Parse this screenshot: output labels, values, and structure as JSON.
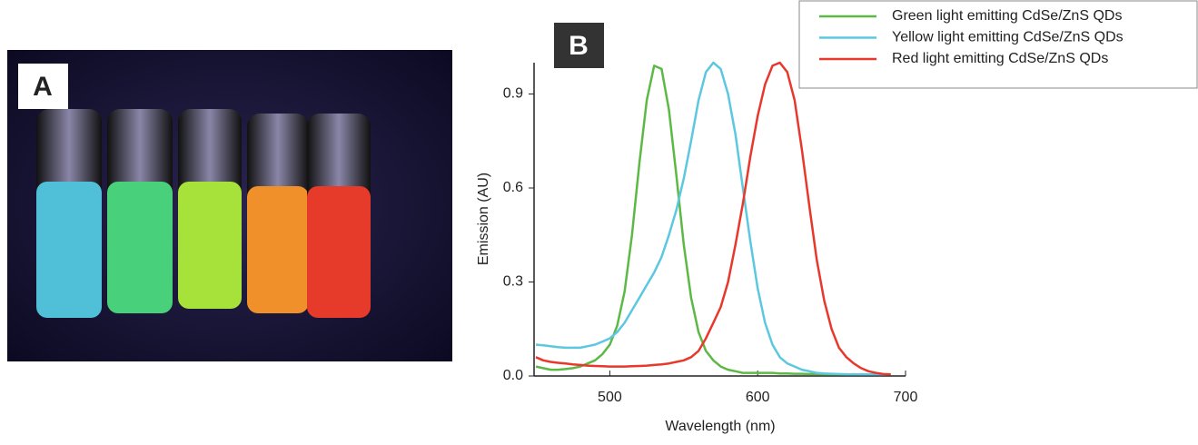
{
  "photo": {
    "label": "A"
  },
  "chart_data": {
    "type": "line",
    "panel_label": "B",
    "x_label": "Wavelength (nm)",
    "y_label": "Emission (AU)",
    "x": [
      450,
      455,
      460,
      465,
      470,
      475,
      480,
      485,
      490,
      495,
      500,
      505,
      510,
      515,
      520,
      525,
      530,
      535,
      540,
      545,
      550,
      555,
      560,
      565,
      570,
      575,
      580,
      585,
      590,
      595,
      600,
      605,
      610,
      615,
      620,
      625,
      630,
      635,
      640,
      645,
      650,
      655,
      660,
      665,
      670,
      675,
      680,
      685,
      690
    ],
    "series": [
      {
        "name": "Green light emitting CdSe/ZnS QDs",
        "color": "#5cb946",
        "values": [
          0.03,
          0.025,
          0.02,
          0.02,
          0.022,
          0.025,
          0.03,
          0.04,
          0.05,
          0.07,
          0.1,
          0.16,
          0.27,
          0.45,
          0.68,
          0.88,
          0.99,
          0.98,
          0.85,
          0.64,
          0.42,
          0.25,
          0.14,
          0.08,
          0.05,
          0.03,
          0.02,
          0.015,
          0.01,
          0.01,
          0.01,
          0.01,
          0.01,
          0.008,
          0.008,
          0.007,
          0.007,
          0.006,
          0.006,
          0.005,
          0.005,
          0.005,
          0.005,
          0.005,
          0.005,
          0.005,
          0.005,
          0.005,
          0.005
        ]
      },
      {
        "name": "Yellow light emitting CdSe/ZnS QDs",
        "color": "#5cc8e0",
        "values": [
          0.1,
          0.098,
          0.095,
          0.092,
          0.09,
          0.09,
          0.09,
          0.095,
          0.1,
          0.11,
          0.12,
          0.14,
          0.17,
          0.21,
          0.25,
          0.29,
          0.33,
          0.38,
          0.45,
          0.53,
          0.63,
          0.75,
          0.88,
          0.97,
          1.0,
          0.98,
          0.9,
          0.77,
          0.6,
          0.43,
          0.28,
          0.17,
          0.1,
          0.06,
          0.04,
          0.03,
          0.02,
          0.015,
          0.01,
          0.008,
          0.007,
          0.006,
          0.005,
          0.005,
          0.005,
          0.005,
          0.005,
          0.005,
          0.005
        ]
      },
      {
        "name": "Red light emitting CdSe/ZnS QDs",
        "color": "#e8382b",
        "values": [
          0.06,
          0.05,
          0.045,
          0.042,
          0.04,
          0.037,
          0.035,
          0.033,
          0.032,
          0.031,
          0.03,
          0.03,
          0.03,
          0.031,
          0.032,
          0.033,
          0.035,
          0.037,
          0.04,
          0.045,
          0.05,
          0.06,
          0.08,
          0.12,
          0.17,
          0.22,
          0.3,
          0.42,
          0.55,
          0.7,
          0.83,
          0.93,
          0.99,
          1.0,
          0.97,
          0.88,
          0.72,
          0.54,
          0.37,
          0.24,
          0.15,
          0.09,
          0.06,
          0.04,
          0.025,
          0.015,
          0.01,
          0.006,
          0.005
        ]
      }
    ],
    "xlim": [
      450,
      700
    ],
    "xticks": [
      500,
      600,
      700
    ],
    "ylim": [
      0,
      1.0
    ],
    "yticks": [
      {
        "value": 0,
        "label": "0.0"
      },
      0.3,
      0.6,
      0.9
    ],
    "legend": "top-right"
  }
}
